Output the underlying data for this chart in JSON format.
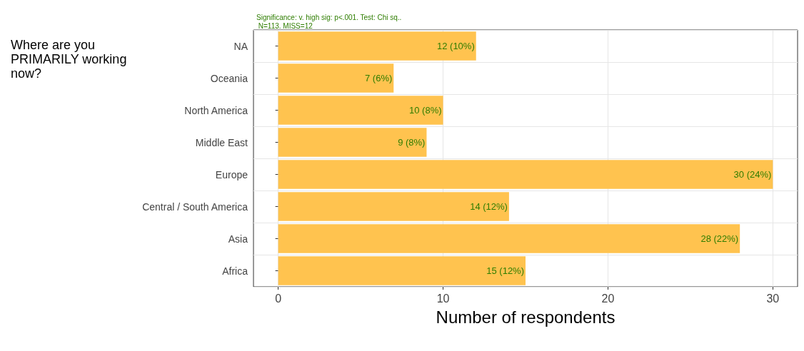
{
  "chart_data": {
    "type": "bar",
    "orientation": "horizontal",
    "title": "Where are you PRIMARILY working now?",
    "xlabel": "Number of respondents",
    "annotations": [
      "Significance: v. high sig: p<.001. Test: Chi sq..\n N=113. MISS=12"
    ],
    "categories": [
      "NA",
      "Oceania",
      "North America",
      "Middle East",
      "Europe",
      "Central / South America",
      "Asia",
      "Africa"
    ],
    "values": [
      12,
      7,
      10,
      9,
      30,
      14,
      28,
      15
    ],
    "value_labels": [
      "12 (10%)",
      "7 (6%)",
      "10 (8%)",
      "9 (8%)",
      "30 (24%)",
      "14 (12%)",
      "28 (22%)",
      "15 (12%)"
    ],
    "color": "#ffc34f",
    "xlim": [
      -1.5,
      31.5
    ],
    "xticks": [
      0,
      10,
      20,
      30
    ],
    "grid": true
  }
}
